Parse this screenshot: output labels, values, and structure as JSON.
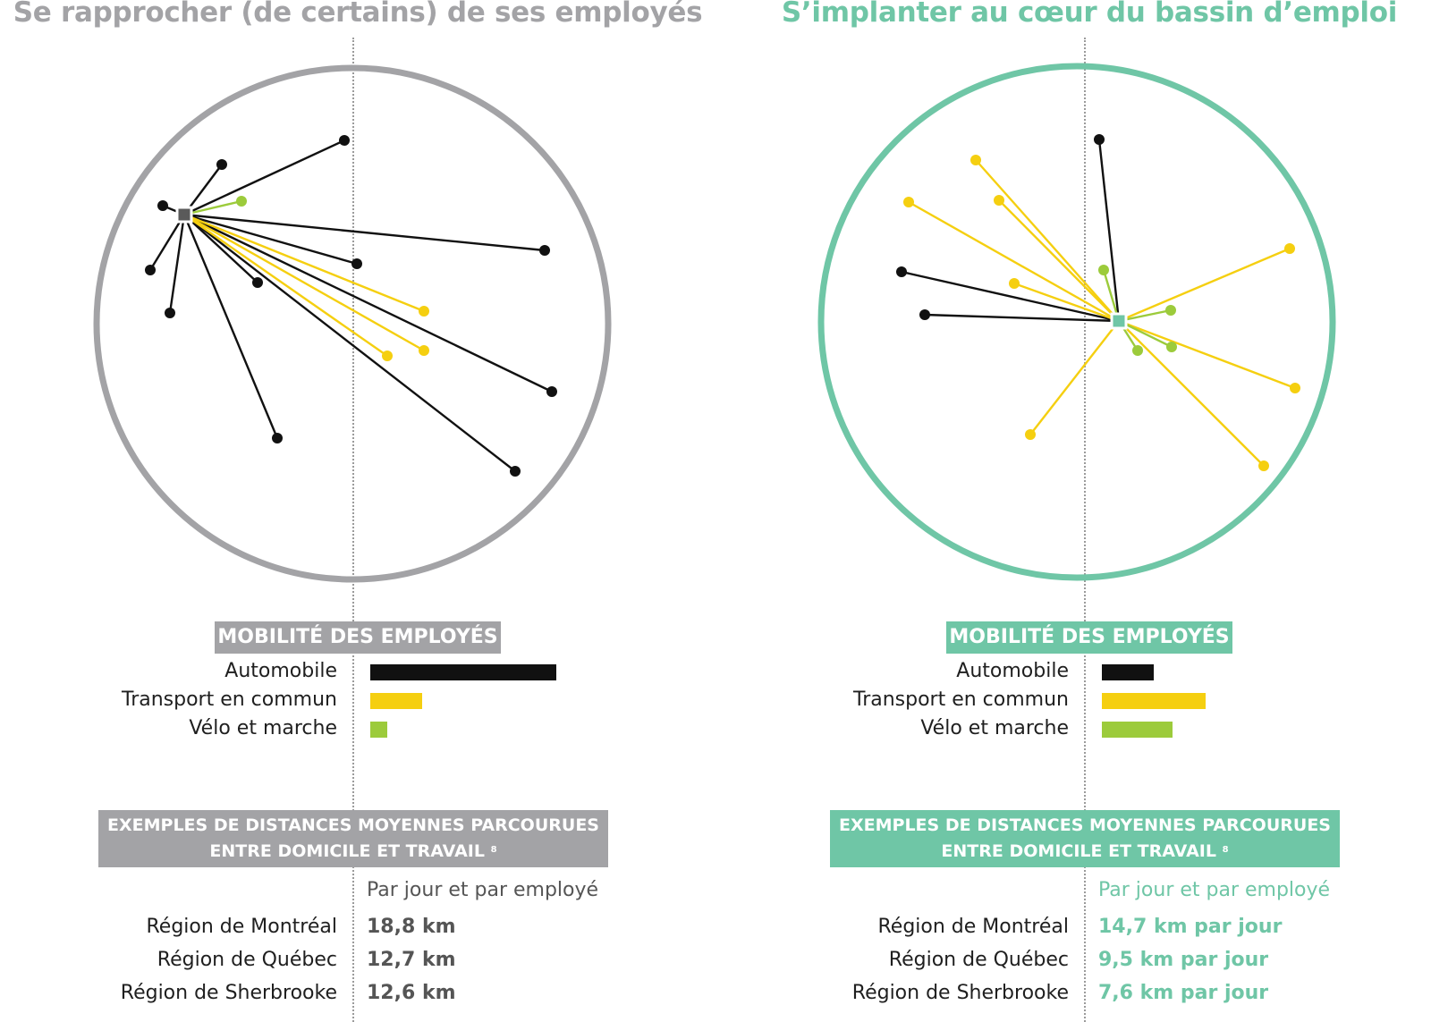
{
  "colors": {
    "gray": "#a3a3a6",
    "green": "#6fc6a6",
    "car": "#111111",
    "transit": "#f5cf10",
    "bike": "#9ccb3b",
    "text": "#1f1f1f",
    "left_value": "#555555"
  },
  "panels": [
    {
      "title": "Se rapprocher (de certains) de ses employés",
      "theme": "gray",
      "mobility_header": "MOBILITÉ DES EMPLOYÉS",
      "mobility": [
        {
          "label": "Automobile",
          "mode": "car",
          "share": 1.0
        },
        {
          "label": "Transport en commun",
          "mode": "transit",
          "share": 0.28
        },
        {
          "label": "Vélo et marche",
          "mode": "bike",
          "share": 0.09
        }
      ],
      "distance_header_line1": "EXEMPLES DE DISTANCES MOYENNES PARCOURUES",
      "distance_header_line2": "ENTRE DOMICILE ET TRAVAIL",
      "footnote": "8",
      "distance_subheader": "Par jour et par employé",
      "distances": [
        {
          "region": "Région de Montréal",
          "value": "18,8 km"
        },
        {
          "region": "Région de Québec",
          "value": "12,7 km"
        },
        {
          "region": "Région de Sherbrooke",
          "value": "12,6 km"
        }
      ]
    },
    {
      "title": "S’implanter au cœur du bassin d’emploi",
      "theme": "green",
      "mobility_header": "MOBILITÉ DES EMPLOYÉS",
      "mobility": [
        {
          "label": "Automobile",
          "mode": "car",
          "share": 0.28
        },
        {
          "label": "Transport en commun",
          "mode": "transit",
          "share": 0.56
        },
        {
          "label": "Vélo et marche",
          "mode": "bike",
          "share": 0.38
        }
      ],
      "distance_header_line1": "EXEMPLES DE DISTANCES MOYENNES PARCOURUES",
      "distance_header_line2": "ENTRE DOMICILE ET TRAVAIL",
      "footnote": "8",
      "distance_subheader": "Par jour et par employé",
      "distances": [
        {
          "region": "Région de Montréal",
          "value": "14,7 km par jour"
        },
        {
          "region": "Région de Québec",
          "value": "9,5 km par jour"
        },
        {
          "region": "Région de Sherbrooke",
          "value": "7,6 km par jour"
        }
      ]
    }
  ]
}
